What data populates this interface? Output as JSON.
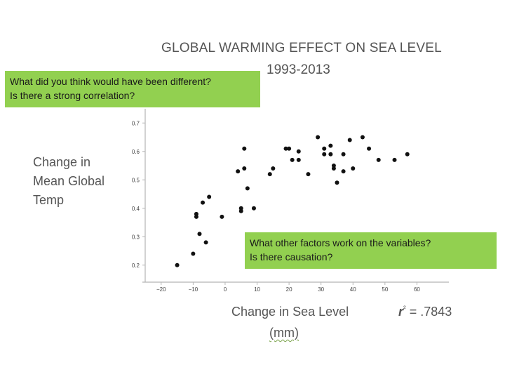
{
  "notes": {
    "top_line1": "What did you think would have been different?",
    "top_line2": "Is there a strong correlation?",
    "bottom_line1": "What other factors work on the variables?",
    "bottom_line2": "Is there causation?"
  },
  "colors": {
    "note_bg": "#92d050",
    "text": "#555555",
    "point": "#111111"
  },
  "chart_data": {
    "type": "scatter",
    "title": "GLOBAL WARMING EFFECT ON SEA LEVEL",
    "subtitle": "1993-2013",
    "ylabel_lines": [
      "Change in",
      "Mean Global",
      "Temp"
    ],
    "xlabel": "Change in Sea Level",
    "xunit": "(mm)",
    "r_symbol": "r",
    "r_value": "= .7843",
    "xlim": [
      -25,
      70
    ],
    "ylim": [
      0.15,
      0.75
    ],
    "xticks": [
      -20,
      -10,
      0,
      10,
      20,
      30,
      40,
      50,
      60
    ],
    "xtick_labels": [
      "−20",
      "−10",
      "0",
      "10",
      "20",
      "30",
      "40",
      "50",
      "60"
    ],
    "yticks": [
      0.2,
      0.3,
      0.4,
      0.5,
      0.6,
      0.7
    ],
    "ytick_labels": [
      "0.2",
      "0.3",
      "0.4",
      "0.5",
      "0.6",
      "0.7"
    ],
    "points": [
      {
        "x": -15,
        "y": 0.2
      },
      {
        "x": -10,
        "y": 0.24
      },
      {
        "x": -9,
        "y": 0.37
      },
      {
        "x": -9,
        "y": 0.38
      },
      {
        "x": -8,
        "y": 0.31
      },
      {
        "x": -7,
        "y": 0.42
      },
      {
        "x": -6,
        "y": 0.28
      },
      {
        "x": -5,
        "y": 0.44
      },
      {
        "x": -1,
        "y": 0.37
      },
      {
        "x": 4,
        "y": 0.53
      },
      {
        "x": 5,
        "y": 0.39
      },
      {
        "x": 5,
        "y": 0.4
      },
      {
        "x": 6,
        "y": 0.61
      },
      {
        "x": 6,
        "y": 0.54
      },
      {
        "x": 7,
        "y": 0.47
      },
      {
        "x": 9,
        "y": 0.4
      },
      {
        "x": 14,
        "y": 0.52
      },
      {
        "x": 15,
        "y": 0.54
      },
      {
        "x": 19,
        "y": 0.61
      },
      {
        "x": 20,
        "y": 0.61
      },
      {
        "x": 21,
        "y": 0.57
      },
      {
        "x": 23,
        "y": 0.6
      },
      {
        "x": 23,
        "y": 0.57
      },
      {
        "x": 26,
        "y": 0.52
      },
      {
        "x": 29,
        "y": 0.65
      },
      {
        "x": 31,
        "y": 0.61
      },
      {
        "x": 31,
        "y": 0.59
      },
      {
        "x": 33,
        "y": 0.62
      },
      {
        "x": 33,
        "y": 0.59
      },
      {
        "x": 34,
        "y": 0.55
      },
      {
        "x": 34,
        "y": 0.54
      },
      {
        "x": 35,
        "y": 0.49
      },
      {
        "x": 37,
        "y": 0.59
      },
      {
        "x": 37,
        "y": 0.53
      },
      {
        "x": 39,
        "y": 0.64
      },
      {
        "x": 40,
        "y": 0.54
      },
      {
        "x": 43,
        "y": 0.65
      },
      {
        "x": 45,
        "y": 0.61
      },
      {
        "x": 48,
        "y": 0.57
      },
      {
        "x": 53,
        "y": 0.57
      },
      {
        "x": 57,
        "y": 0.59
      }
    ]
  }
}
